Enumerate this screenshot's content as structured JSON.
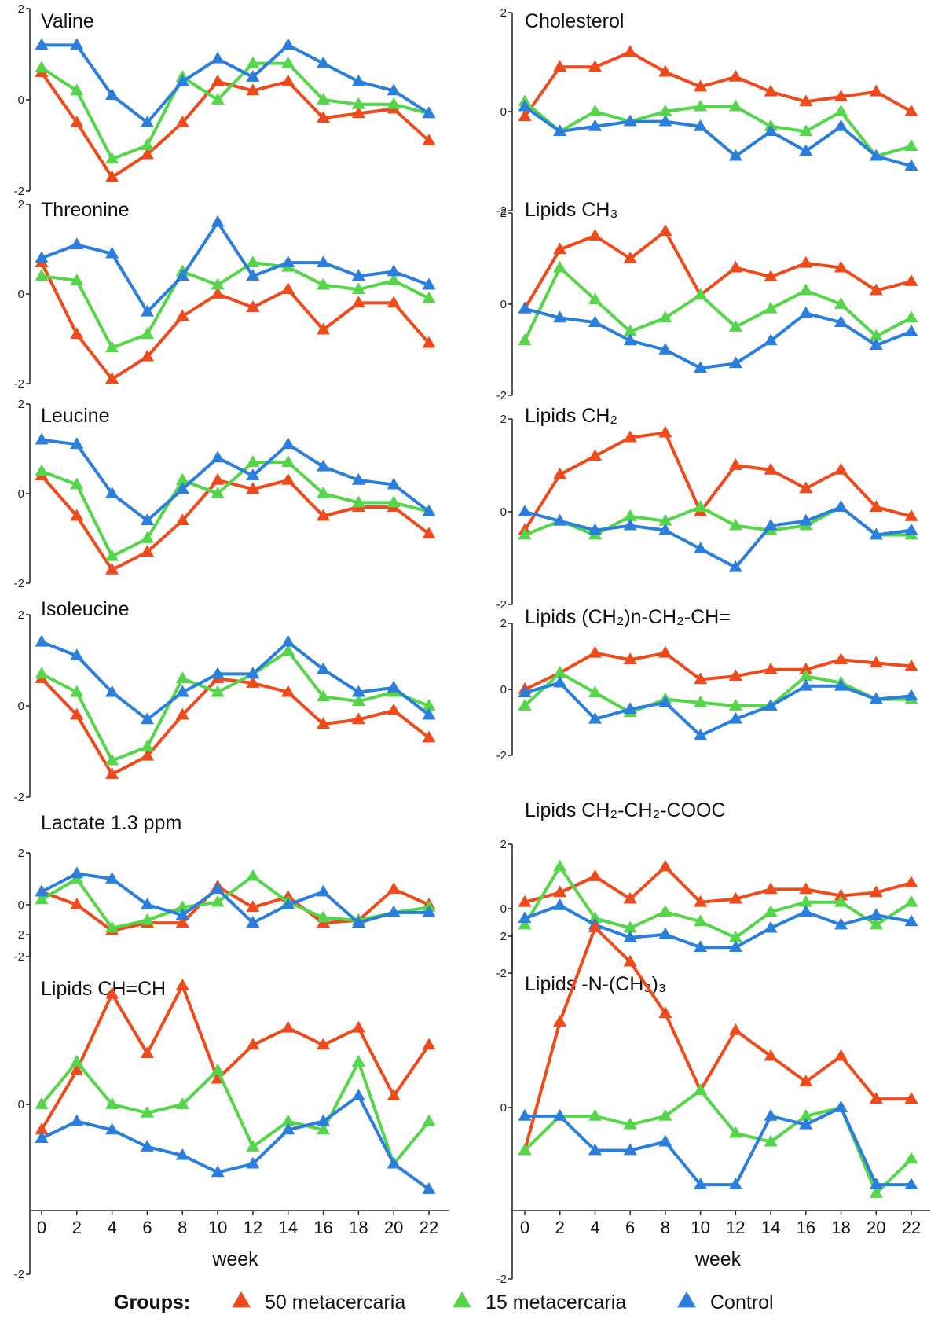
{
  "chart_data": {
    "type": "line",
    "xlabel": "week",
    "x": [
      0,
      2,
      4,
      6,
      8,
      10,
      12,
      14,
      16,
      18,
      20,
      22
    ],
    "x_ticks": [
      "0",
      "2",
      "4",
      "6",
      "8",
      "10",
      "12",
      "14",
      "16",
      "18",
      "20",
      "22"
    ],
    "ylim": [
      -2,
      2
    ],
    "y_ticks": [
      "2",
      "0",
      "-2"
    ],
    "grid": false,
    "legend": {
      "title": "Groups:",
      "position": "bottom",
      "entries": [
        "50 metacercaria",
        "15 metacercaria",
        "Control"
      ]
    },
    "colors": {
      "50 metacercaria": "#ee4a1c",
      "15 metacercaria": "#55d64a",
      "Control": "#2b7fdc"
    },
    "panels": [
      {
        "title": "Valine",
        "column": "left",
        "series": [
          {
            "name": "50 metacercaria",
            "values": [
              0.6,
              -0.5,
              -1.7,
              -1.2,
              -0.5,
              0.4,
              0.2,
              0.4,
              -0.4,
              -0.3,
              -0.2,
              -0.9
            ]
          },
          {
            "name": "15 metacercaria",
            "values": [
              0.7,
              0.2,
              -1.3,
              -1.0,
              0.5,
              0.0,
              0.8,
              0.8,
              0.0,
              -0.1,
              -0.1,
              -0.3
            ]
          },
          {
            "name": "Control",
            "values": [
              1.2,
              1.2,
              0.1,
              -0.5,
              0.4,
              0.9,
              0.5,
              1.2,
              0.8,
              0.4,
              0.2,
              -0.3
            ]
          }
        ]
      },
      {
        "title": "Threonine",
        "column": "left",
        "series": [
          {
            "name": "50 metacercaria",
            "values": [
              0.7,
              -0.9,
              -1.9,
              -1.4,
              -0.5,
              0.0,
              -0.3,
              0.1,
              -0.8,
              -0.2,
              -0.2,
              -1.1
            ]
          },
          {
            "name": "15 metacercaria",
            "values": [
              0.4,
              0.3,
              -1.2,
              -0.9,
              0.5,
              0.2,
              0.7,
              0.6,
              0.2,
              0.1,
              0.3,
              -0.1
            ]
          },
          {
            "name": "Control",
            "values": [
              0.8,
              1.1,
              0.9,
              -0.4,
              0.4,
              1.6,
              0.4,
              0.7,
              0.7,
              0.4,
              0.5,
              0.2
            ]
          }
        ]
      },
      {
        "title": "Leucine",
        "column": "left",
        "series": [
          {
            "name": "50 metacercaria",
            "values": [
              0.4,
              -0.5,
              -1.7,
              -1.3,
              -0.6,
              0.3,
              0.1,
              0.3,
              -0.5,
              -0.3,
              -0.3,
              -0.9
            ]
          },
          {
            "name": "15 metacercaria",
            "values": [
              0.5,
              0.2,
              -1.4,
              -1.0,
              0.3,
              0.0,
              0.7,
              0.7,
              0.0,
              -0.2,
              -0.2,
              -0.4
            ]
          },
          {
            "name": "Control",
            "values": [
              1.2,
              1.1,
              0.0,
              -0.6,
              0.1,
              0.8,
              0.4,
              1.1,
              0.6,
              0.3,
              0.2,
              -0.4
            ]
          }
        ]
      },
      {
        "title": "Isoleucine",
        "column": "left",
        "series": [
          {
            "name": "50 metacercaria",
            "values": [
              0.6,
              -0.2,
              -1.5,
              -1.1,
              -0.2,
              0.6,
              0.5,
              0.3,
              -0.4,
              -0.3,
              -0.1,
              -0.7
            ]
          },
          {
            "name": "15 metacercaria",
            "values": [
              0.7,
              0.3,
              -1.2,
              -0.9,
              0.6,
              0.3,
              0.7,
              1.2,
              0.2,
              0.1,
              0.3,
              0.0
            ]
          },
          {
            "name": "Control",
            "values": [
              1.4,
              1.1,
              0.3,
              -0.3,
              0.3,
              0.7,
              0.7,
              1.4,
              0.8,
              0.3,
              0.4,
              -0.2
            ]
          }
        ]
      },
      {
        "title": "Lactate 1.3 ppm",
        "column": "left",
        "series": [
          {
            "name": "50 metacercaria",
            "values": [
              0.5,
              0.0,
              -1.0,
              -0.7,
              -0.7,
              0.7,
              -0.1,
              0.3,
              -0.7,
              -0.6,
              0.6,
              0.0
            ]
          },
          {
            "name": "15 metacercaria",
            "values": [
              0.2,
              1.0,
              -0.9,
              -0.6,
              -0.1,
              0.1,
              1.1,
              0.1,
              -0.5,
              -0.6,
              -0.3,
              -0.1
            ]
          },
          {
            "name": "Control",
            "values": [
              0.5,
              1.2,
              1.0,
              0.0,
              -0.4,
              0.6,
              -0.7,
              0.0,
              0.5,
              -0.7,
              -0.3,
              -0.3
            ]
          }
        ]
      },
      {
        "title": "Lipids CH=CH",
        "column": "left",
        "series": [
          {
            "name": "50 metacercaria",
            "values": [
              -0.3,
              0.4,
              1.3,
              0.6,
              1.4,
              0.3,
              0.7,
              0.9,
              0.7,
              0.9,
              0.1,
              0.7
            ]
          },
          {
            "name": "15 metacercaria",
            "values": [
              0.0,
              0.5,
              0.0,
              -0.1,
              0.0,
              0.4,
              -0.5,
              -0.2,
              -0.3,
              0.5,
              -0.7,
              -0.2
            ]
          },
          {
            "name": "Control",
            "values": [
              -0.4,
              -0.2,
              -0.3,
              -0.5,
              -0.6,
              -0.8,
              -0.7,
              -0.3,
              -0.2,
              0.1,
              -0.7,
              -1.0
            ]
          }
        ]
      },
      {
        "title": "Cholesterol",
        "column": "right",
        "series": [
          {
            "name": "50 metacercaria",
            "values": [
              -0.1,
              0.9,
              0.9,
              1.2,
              0.8,
              0.5,
              0.7,
              0.4,
              0.2,
              0.3,
              0.4,
              0.0
            ]
          },
          {
            "name": "15 metacercaria",
            "values": [
              0.2,
              -0.4,
              0.0,
              -0.2,
              0.0,
              0.1,
              0.1,
              -0.3,
              -0.4,
              0.0,
              -0.9,
              -0.7
            ]
          },
          {
            "name": "Control",
            "values": [
              0.1,
              -0.4,
              -0.3,
              -0.2,
              -0.2,
              -0.3,
              -0.9,
              -0.4,
              -0.8,
              -0.3,
              -0.9,
              -1.1
            ]
          }
        ]
      },
      {
        "title": "Lipids CH₃",
        "column": "right",
        "series": [
          {
            "name": "50 metacercaria",
            "values": [
              -0.1,
              1.2,
              1.5,
              1.0,
              1.6,
              0.2,
              0.8,
              0.6,
              0.9,
              0.8,
              0.3,
              0.5
            ]
          },
          {
            "name": "15 metacercaria",
            "values": [
              -0.8,
              0.8,
              0.1,
              -0.6,
              -0.3,
              0.2,
              -0.5,
              -0.1,
              0.3,
              0.0,
              -0.7,
              -0.3
            ]
          },
          {
            "name": "Control",
            "values": [
              -0.1,
              -0.3,
              -0.4,
              -0.8,
              -1.0,
              -1.4,
              -1.3,
              -0.8,
              -0.2,
              -0.4,
              -0.9,
              -0.6
            ]
          }
        ]
      },
      {
        "title": "Lipids CH₂",
        "column": "right",
        "series": [
          {
            "name": "50 metacercaria",
            "values": [
              -0.4,
              0.8,
              1.2,
              1.6,
              1.7,
              0.0,
              1.0,
              0.9,
              0.5,
              0.9,
              0.1,
              -0.1
            ]
          },
          {
            "name": "15 metacercaria",
            "values": [
              -0.5,
              -0.2,
              -0.5,
              -0.1,
              -0.2,
              0.1,
              -0.3,
              -0.4,
              -0.3,
              0.1,
              -0.5,
              -0.5
            ]
          },
          {
            "name": "Control",
            "values": [
              0.0,
              -0.2,
              -0.4,
              -0.3,
              -0.4,
              -0.8,
              -1.2,
              -0.3,
              -0.2,
              0.1,
              -0.5,
              -0.4
            ]
          }
        ]
      },
      {
        "title": "Lipids (CH₂)n-CH₂-CH=",
        "column": "right",
        "series": [
          {
            "name": "50 metacercaria",
            "values": [
              0.0,
              0.5,
              1.1,
              0.9,
              1.1,
              0.3,
              0.4,
              0.6,
              0.6,
              0.9,
              0.8,
              0.7
            ]
          },
          {
            "name": "15 metacercaria",
            "values": [
              -0.5,
              0.5,
              -0.1,
              -0.7,
              -0.3,
              -0.4,
              -0.5,
              -0.5,
              0.4,
              0.2,
              -0.3,
              -0.3
            ]
          },
          {
            "name": "Control",
            "values": [
              -0.1,
              0.2,
              -0.9,
              -0.6,
              -0.4,
              -1.4,
              -0.9,
              -0.5,
              0.1,
              0.1,
              -0.3,
              -0.2
            ]
          }
        ]
      },
      {
        "title": "Lipids CH₂-CH₂-COOC",
        "column": "right",
        "series": [
          {
            "name": "50 metacercaria",
            "values": [
              0.2,
              0.5,
              1.0,
              0.3,
              1.3,
              0.2,
              0.3,
              0.6,
              0.6,
              0.4,
              0.5,
              0.8
            ]
          },
          {
            "name": "15 metacercaria",
            "values": [
              -0.5,
              1.3,
              -0.3,
              -0.6,
              -0.1,
              -0.4,
              -0.9,
              -0.1,
              0.2,
              0.2,
              -0.5,
              0.2
            ]
          },
          {
            "name": "Control",
            "values": [
              -0.3,
              0.1,
              -0.5,
              -0.9,
              -0.8,
              -1.2,
              -1.2,
              -0.6,
              -0.1,
              -0.5,
              -0.2,
              -0.4
            ]
          }
        ]
      },
      {
        "title": "Lipids -N-(CH₃)₃",
        "column": "right",
        "series": [
          {
            "name": "50 metacercaria",
            "values": [
              -0.5,
              1.0,
              2.1,
              1.7,
              1.1,
              0.2,
              0.9,
              0.6,
              0.3,
              0.6,
              0.1,
              0.1
            ]
          },
          {
            "name": "15 metacercaria",
            "values": [
              -0.5,
              -0.1,
              -0.1,
              -0.2,
              -0.1,
              0.2,
              -0.3,
              -0.4,
              -0.1,
              0.0,
              -1.0,
              -0.6
            ]
          },
          {
            "name": "Control",
            "values": [
              -0.1,
              -0.1,
              -0.5,
              -0.5,
              -0.4,
              -0.9,
              -0.9,
              -0.1,
              -0.2,
              0.0,
              -0.9,
              -0.9
            ]
          }
        ]
      }
    ]
  }
}
